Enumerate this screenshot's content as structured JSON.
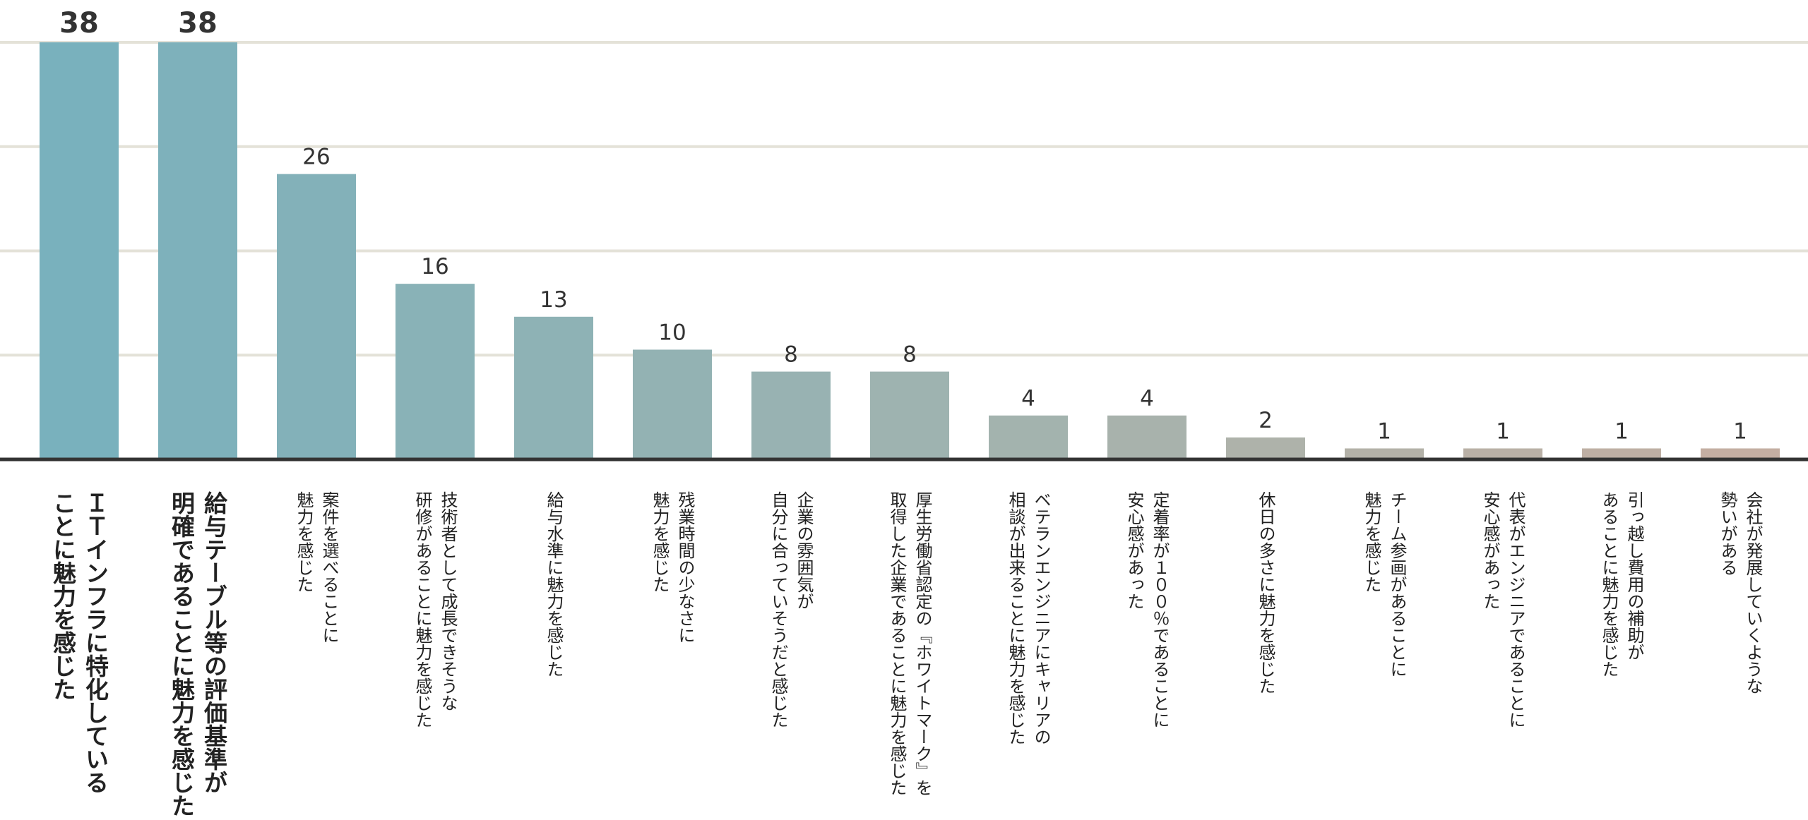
{
  "chart_data": {
    "type": "bar",
    "title": "",
    "xlabel": "",
    "ylabel": "",
    "ylim": [
      0,
      38
    ],
    "grid": true,
    "legend": "none",
    "categories": [
      [
        "ＩＴインフラに特化している",
        "ことに魅力を感じた"
      ],
      [
        "給与テーブル等の評価基準が",
        "明確であることに魅力を感じた"
      ],
      [
        "案件を選べることに",
        "魅力を感じた"
      ],
      [
        "技術者として成長できそうな",
        "研修があることに魅力を感じた"
      ],
      [
        "給与水準に魅力を感じた"
      ],
      [
        "残業時間の少なさに",
        "魅力を感じた"
      ],
      [
        "企業の雰囲気が",
        "自分に合っていそうだと感じた"
      ],
      [
        "厚生労働省認定の『ホワイトマーク』を",
        "取得した企業であることに魅力を感じた"
      ],
      [
        "ベテランエンジニアにキャリアの",
        "相談が出来ることに魅力を感じた"
      ],
      [
        "定着率が１００％であることに",
        "安心感があった"
      ],
      [
        "休日の多さに魅力を感じた"
      ],
      [
        "チーム参画があることに",
        "魅力を感じた"
      ],
      [
        "代表がエンジニアであることに",
        "安心感があった"
      ],
      [
        "引っ越し費用の補助が",
        "あることに魅力を感じた"
      ],
      [
        "会社が発展していくような",
        "勢いがある"
      ]
    ],
    "values": [
      38,
      38,
      26,
      16,
      13,
      10,
      8,
      8,
      4,
      4,
      2,
      1,
      1,
      1,
      1
    ],
    "colors": {
      "bar_start": "#79b1bd",
      "bar_mid": "#a5b3ad",
      "bar_end": "#c4aea2",
      "grid": "#e4e2d8",
      "axis": "#333333"
    }
  }
}
